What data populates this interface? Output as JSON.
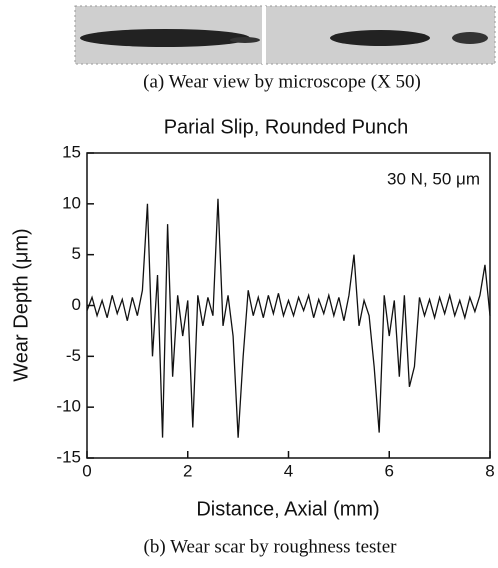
{
  "captions": {
    "top": "(a) Wear view by microscope (X 50)",
    "bottom": "(b) Wear scar by roughness tester"
  },
  "chart_data": {
    "type": "line",
    "title": "Parial Slip, Rounded Punch",
    "x_label": "Distance, Axial (mm)",
    "y_label": "Wear Depth (μm)",
    "annotation": "30 N, 50 μm",
    "x": [
      0,
      0.1,
      0.2,
      0.3,
      0.4,
      0.5,
      0.6,
      0.7,
      0.8,
      0.9,
      1,
      1.1,
      1.2,
      1.3,
      1.4,
      1.5,
      1.6,
      1.7,
      1.8,
      1.9,
      2,
      2.1,
      2.2,
      2.3,
      2.4,
      2.5,
      2.6,
      2.7,
      2.8,
      2.9,
      3,
      3.1,
      3.2,
      3.3,
      3.4,
      3.5,
      3.6,
      3.7,
      3.8,
      3.9,
      4,
      4.1,
      4.2,
      4.3,
      4.4,
      4.5,
      4.6,
      4.7,
      4.8,
      4.9,
      5,
      5.1,
      5.2,
      5.3,
      5.4,
      5.5,
      5.6,
      5.7,
      5.8,
      5.9,
      6,
      6.1,
      6.2,
      6.3,
      6.4,
      6.5,
      6.6,
      6.7,
      6.8,
      6.9,
      7,
      7.1,
      7.2,
      7.3,
      7.4,
      7.5,
      7.6,
      7.7,
      7.8,
      7.9,
      8
    ],
    "series": [
      {
        "color": "#111111",
        "values": [
          -0.5,
          0.8,
          -1,
          0.5,
          -1.2,
          1,
          -0.8,
          0.6,
          -1.5,
          0.8,
          -1,
          1.5,
          10,
          -5,
          3,
          -13,
          8,
          -7,
          1,
          -3,
          0.5,
          -12,
          1,
          -2,
          0.8,
          -1,
          10.5,
          -2,
          1,
          -3,
          -13,
          -5,
          1.5,
          -1,
          0.8,
          -1.2,
          1,
          -0.8,
          1.2,
          -1,
          0.5,
          -1,
          0.8,
          -0.5,
          1,
          -1.2,
          0.6,
          -0.8,
          1,
          -1,
          0.8,
          -1.5,
          1,
          5,
          -2,
          0.5,
          -1,
          -6,
          -12.5,
          1,
          -3,
          0.5,
          -7,
          1,
          -8,
          -6,
          0.8,
          -1,
          0.6,
          -1.2,
          0.8,
          -0.8,
          1,
          -1,
          0.5,
          -1.2,
          0.8,
          -0.6,
          1,
          4,
          -1
        ]
      }
    ],
    "xlim": [
      0,
      8
    ],
    "xticks": [
      0,
      2,
      4,
      6,
      8
    ],
    "ylim": [
      -15,
      15
    ],
    "yticks": [
      -15,
      -10,
      -5,
      0,
      5,
      10,
      15
    ]
  }
}
